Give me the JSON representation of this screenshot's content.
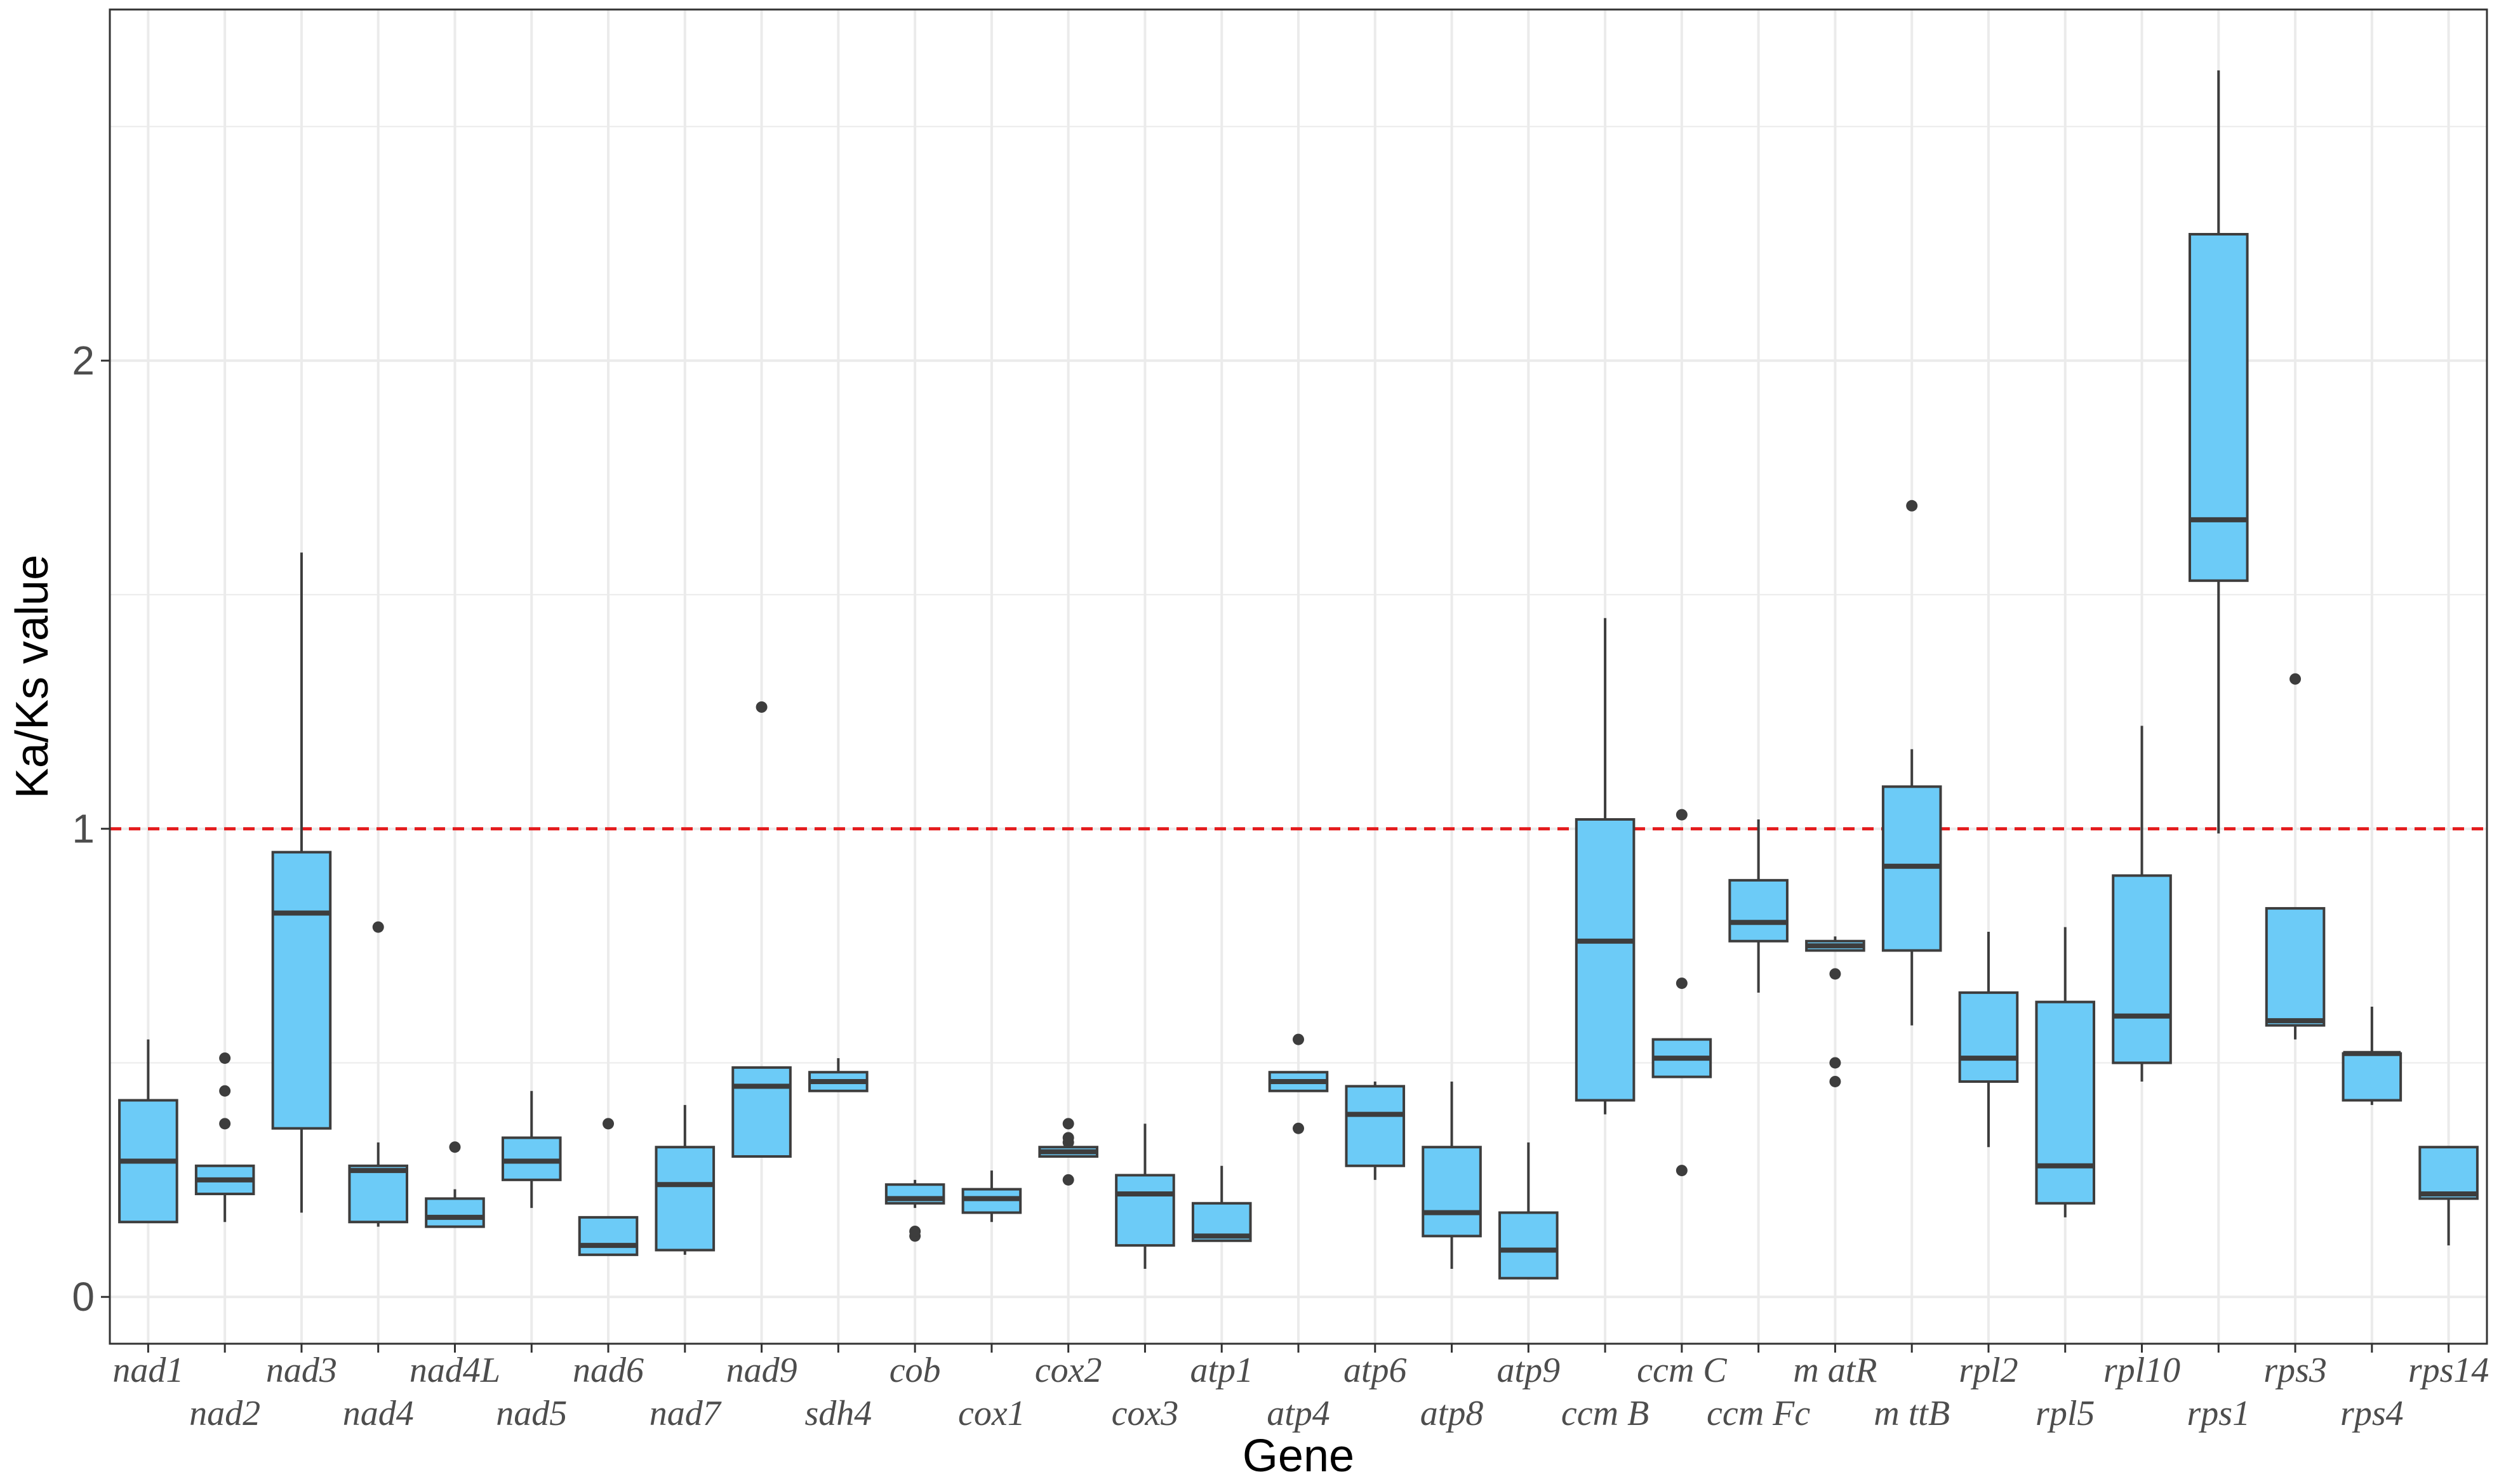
{
  "chart_data": {
    "type": "boxplot",
    "title": "",
    "xlabel": "Gene",
    "ylabel": "Ka/Ks value",
    "ylim": [
      -0.1,
      2.75
    ],
    "yticks": [
      0,
      1,
      2
    ],
    "ytick_labels": [
      "0",
      "1",
      "2"
    ],
    "grid": true,
    "reference_line": {
      "y": 1,
      "style": "dashed",
      "color": "#e41a1c"
    },
    "colors": {
      "box_fill": "#6ccbf7",
      "box_stroke": "#3d3d3d",
      "grid": "#ebebeb",
      "border": "#333333"
    },
    "categories": [
      "nad1",
      "nad2",
      "nad3",
      "nad4",
      "nad4L",
      "nad5",
      "nad6",
      "nad7",
      "nad9",
      "sdh4",
      "cob",
      "cox1",
      "cox2",
      "cox3",
      "atp1",
      "atp4",
      "atp6",
      "atp8",
      "atp9",
      "ccmB",
      "ccmC",
      "ccmFc",
      "matR",
      "mttB",
      "rpl2",
      "rpl5",
      "rpl10",
      "rps1",
      "rps3",
      "rps4",
      "rps14"
    ],
    "category_labels": [
      "nad1",
      "nad2",
      "nad3",
      "nad4",
      "nad4L",
      "nad5",
      "nad6",
      "nad7",
      "nad9",
      "sdh4",
      "cob",
      "cox1",
      "cox2",
      "cox3",
      "atp1",
      "atp4",
      "atp6",
      "atp8",
      "atp9",
      "ccm B",
      "ccm C",
      "ccm Fc",
      "m atR",
      "m ttB",
      "rpl2",
      "rpl5",
      "rpl10",
      "rps1",
      "rps3",
      "rps4",
      "rps14"
    ],
    "boxes": [
      {
        "gene": "nad1",
        "whislo": 0.16,
        "q1": 0.16,
        "med": 0.29,
        "q3": 0.42,
        "whishi": 0.55,
        "outliers": []
      },
      {
        "gene": "nad2",
        "whislo": 0.16,
        "q1": 0.22,
        "med": 0.25,
        "q3": 0.28,
        "whishi": 0.28,
        "outliers": [
          0.37,
          0.44,
          0.51
        ]
      },
      {
        "gene": "nad3",
        "whislo": 0.18,
        "q1": 0.36,
        "med": 0.82,
        "q3": 0.95,
        "whishi": 1.59,
        "outliers": []
      },
      {
        "gene": "nad4",
        "whislo": 0.15,
        "q1": 0.16,
        "med": 0.27,
        "q3": 0.28,
        "whishi": 0.33,
        "outliers": [
          0.79
        ]
      },
      {
        "gene": "nad4L",
        "whislo": 0.15,
        "q1": 0.15,
        "med": 0.17,
        "q3": 0.21,
        "whishi": 0.23,
        "outliers": [
          0.32
        ]
      },
      {
        "gene": "nad5",
        "whislo": 0.19,
        "q1": 0.25,
        "med": 0.29,
        "q3": 0.34,
        "whishi": 0.44,
        "outliers": []
      },
      {
        "gene": "nad6",
        "whislo": 0.09,
        "q1": 0.09,
        "med": 0.11,
        "q3": 0.17,
        "whishi": 0.17,
        "outliers": [
          0.37
        ]
      },
      {
        "gene": "nad7",
        "whislo": 0.09,
        "q1": 0.1,
        "med": 0.24,
        "q3": 0.32,
        "whishi": 0.41,
        "outliers": []
      },
      {
        "gene": "nad9",
        "whislo": 0.3,
        "q1": 0.3,
        "med": 0.45,
        "q3": 0.49,
        "whishi": 0.49,
        "outliers": [
          1.26
        ]
      },
      {
        "gene": "sdh4",
        "whislo": 0.44,
        "q1": 0.44,
        "med": 0.46,
        "q3": 0.48,
        "whishi": 0.51,
        "outliers": []
      },
      {
        "gene": "cob",
        "whislo": 0.19,
        "q1": 0.2,
        "med": 0.21,
        "q3": 0.24,
        "whishi": 0.25,
        "outliers": [
          0.13,
          0.14
        ]
      },
      {
        "gene": "cox1",
        "whislo": 0.16,
        "q1": 0.18,
        "med": 0.21,
        "q3": 0.23,
        "whishi": 0.27,
        "outliers": []
      },
      {
        "gene": "cox2",
        "whislo": 0.3,
        "q1": 0.3,
        "med": 0.31,
        "q3": 0.32,
        "whishi": 0.32,
        "outliers": [
          0.25,
          0.33,
          0.34,
          0.37
        ]
      },
      {
        "gene": "cox3",
        "whislo": 0.06,
        "q1": 0.11,
        "med": 0.22,
        "q3": 0.26,
        "whishi": 0.37,
        "outliers": []
      },
      {
        "gene": "atp1",
        "whislo": 0.12,
        "q1": 0.12,
        "med": 0.13,
        "q3": 0.2,
        "whishi": 0.28,
        "outliers": []
      },
      {
        "gene": "atp4",
        "whislo": 0.44,
        "q1": 0.44,
        "med": 0.46,
        "q3": 0.48,
        "whishi": 0.48,
        "outliers": [
          0.36,
          0.55
        ]
      },
      {
        "gene": "atp6",
        "whislo": 0.25,
        "q1": 0.28,
        "med": 0.39,
        "q3": 0.45,
        "whishi": 0.46,
        "outliers": []
      },
      {
        "gene": "atp8",
        "whislo": 0.06,
        "q1": 0.13,
        "med": 0.18,
        "q3": 0.32,
        "whishi": 0.46,
        "outliers": []
      },
      {
        "gene": "atp9",
        "whislo": 0.04,
        "q1": 0.04,
        "med": 0.1,
        "q3": 0.18,
        "whishi": 0.33,
        "outliers": []
      },
      {
        "gene": "ccmB",
        "whislo": 0.39,
        "q1": 0.42,
        "med": 0.76,
        "q3": 1.02,
        "whishi": 1.45,
        "outliers": []
      },
      {
        "gene": "ccmC",
        "whislo": 0.47,
        "q1": 0.47,
        "med": 0.51,
        "q3": 0.55,
        "whishi": 0.55,
        "outliers": [
          0.27,
          0.67,
          1.03
        ]
      },
      {
        "gene": "ccmFc",
        "whislo": 0.65,
        "q1": 0.76,
        "med": 0.8,
        "q3": 0.89,
        "whishi": 1.02,
        "outliers": []
      },
      {
        "gene": "matR",
        "whislo": 0.74,
        "q1": 0.74,
        "med": 0.75,
        "q3": 0.76,
        "whishi": 0.77,
        "outliers": [
          0.46,
          0.5,
          0.69
        ]
      },
      {
        "gene": "mttB",
        "whislo": 0.58,
        "q1": 0.74,
        "med": 0.92,
        "q3": 1.09,
        "whishi": 1.17,
        "outliers": [
          1.69
        ]
      },
      {
        "gene": "rpl2",
        "whislo": 0.32,
        "q1": 0.46,
        "med": 0.51,
        "q3": 0.65,
        "whishi": 0.78,
        "outliers": []
      },
      {
        "gene": "rpl5",
        "whislo": 0.17,
        "q1": 0.2,
        "med": 0.28,
        "q3": 0.63,
        "whishi": 0.79,
        "outliers": []
      },
      {
        "gene": "rpl10",
        "whislo": 0.46,
        "q1": 0.5,
        "med": 0.6,
        "q3": 0.9,
        "whishi": 1.22,
        "outliers": []
      },
      {
        "gene": "rps1",
        "whislo": 0.99,
        "q1": 1.53,
        "med": 1.66,
        "q3": 2.27,
        "whishi": 2.62,
        "outliers": []
      },
      {
        "gene": "rps3",
        "whislo": 0.55,
        "q1": 0.58,
        "med": 0.59,
        "q3": 0.83,
        "whishi": 0.83,
        "outliers": [
          1.32
        ]
      },
      {
        "gene": "rps4",
        "whislo": 0.41,
        "q1": 0.42,
        "med": 0.52,
        "q3": 0.52,
        "whishi": 0.62,
        "outliers": []
      },
      {
        "gene": "rps14",
        "whislo": 0.11,
        "q1": 0.21,
        "med": 0.22,
        "q3": 0.32,
        "whishi": 0.32,
        "outliers": []
      }
    ]
  }
}
